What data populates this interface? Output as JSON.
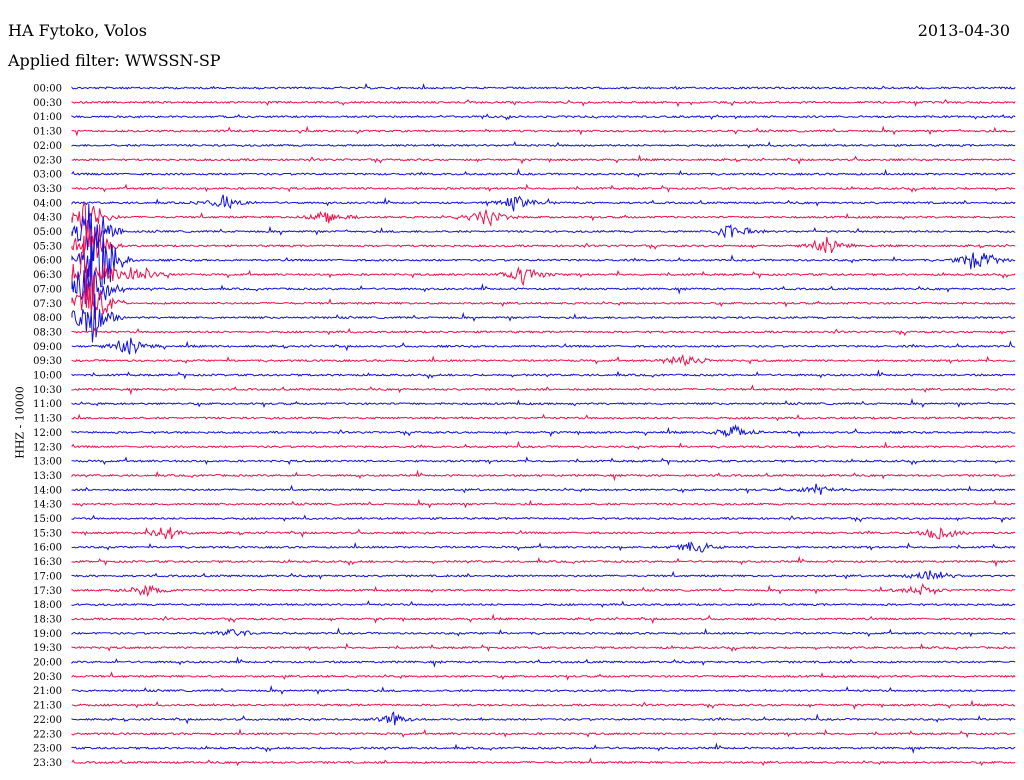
{
  "header": {
    "station": "HA Fytoko, Volos",
    "date": "2013-04-30",
    "filter": "Applied filter: WWSSN-SP"
  },
  "chart_data": {
    "type": "line",
    "description_kind": "helicorder",
    "ylabel": "HHZ - 10000",
    "row_labels": [
      "00:00",
      "00:30",
      "01:00",
      "01:30",
      "02:00",
      "02:30",
      "03:00",
      "03:30",
      "04:00",
      "04:30",
      "05:00",
      "05:30",
      "06:00",
      "06:30",
      "07:00",
      "07:30",
      "08:00",
      "08:30",
      "09:00",
      "09:30",
      "10:00",
      "10:30",
      "11:00",
      "11:30",
      "12:00",
      "12:30",
      "13:00",
      "13:30",
      "14:00",
      "14:30",
      "15:00",
      "15:30",
      "16:00",
      "16:30",
      "17:00",
      "17:30",
      "18:00",
      "18:30",
      "19:00",
      "19:30",
      "20:00",
      "20:30",
      "21:00",
      "21:30",
      "22:00",
      "22:30",
      "23:00",
      "23:30"
    ],
    "colors": {
      "blue": "#1010e0",
      "red": "#f0104a"
    },
    "grid": false,
    "events": [
      {
        "row": 12,
        "pos": 0.03,
        "amp": 60
      },
      {
        "row": 13,
        "pos": 0.015,
        "amp": 60
      },
      {
        "row": 14,
        "pos": 0.02,
        "amp": 55
      },
      {
        "row": 11,
        "pos": 0.02,
        "amp": 40
      },
      {
        "row": 10,
        "pos": 0.02,
        "amp": 45
      },
      {
        "row": 15,
        "pos": 0.02,
        "amp": 40
      },
      {
        "row": 16,
        "pos": 0.02,
        "amp": 35
      },
      {
        "row": 9,
        "pos": 0.015,
        "amp": 30
      },
      {
        "row": 18,
        "pos": 0.06,
        "amp": 10
      },
      {
        "row": 13,
        "pos": 0.07,
        "amp": 14
      },
      {
        "row": 9,
        "pos": 0.44,
        "amp": 12
      },
      {
        "row": 8,
        "pos": 0.47,
        "amp": 10
      },
      {
        "row": 13,
        "pos": 0.48,
        "amp": 14
      },
      {
        "row": 9,
        "pos": 0.27,
        "amp": 10
      },
      {
        "row": 8,
        "pos": 0.16,
        "amp": 8
      },
      {
        "row": 10,
        "pos": 0.7,
        "amp": 10
      },
      {
        "row": 11,
        "pos": 0.8,
        "amp": 9
      },
      {
        "row": 12,
        "pos": 0.96,
        "amp": 14
      },
      {
        "row": 19,
        "pos": 0.65,
        "amp": 9
      },
      {
        "row": 24,
        "pos": 0.7,
        "amp": 7
      },
      {
        "row": 31,
        "pos": 0.1,
        "amp": 9
      },
      {
        "row": 31,
        "pos": 0.92,
        "amp": 9
      },
      {
        "row": 32,
        "pos": 0.66,
        "amp": 8
      },
      {
        "row": 34,
        "pos": 0.91,
        "amp": 8
      },
      {
        "row": 35,
        "pos": 0.08,
        "amp": 8
      },
      {
        "row": 35,
        "pos": 0.9,
        "amp": 8
      },
      {
        "row": 38,
        "pos": 0.17,
        "amp": 6
      },
      {
        "row": 44,
        "pos": 0.34,
        "amp": 7
      },
      {
        "row": 28,
        "pos": 0.79,
        "amp": 6
      }
    ]
  }
}
